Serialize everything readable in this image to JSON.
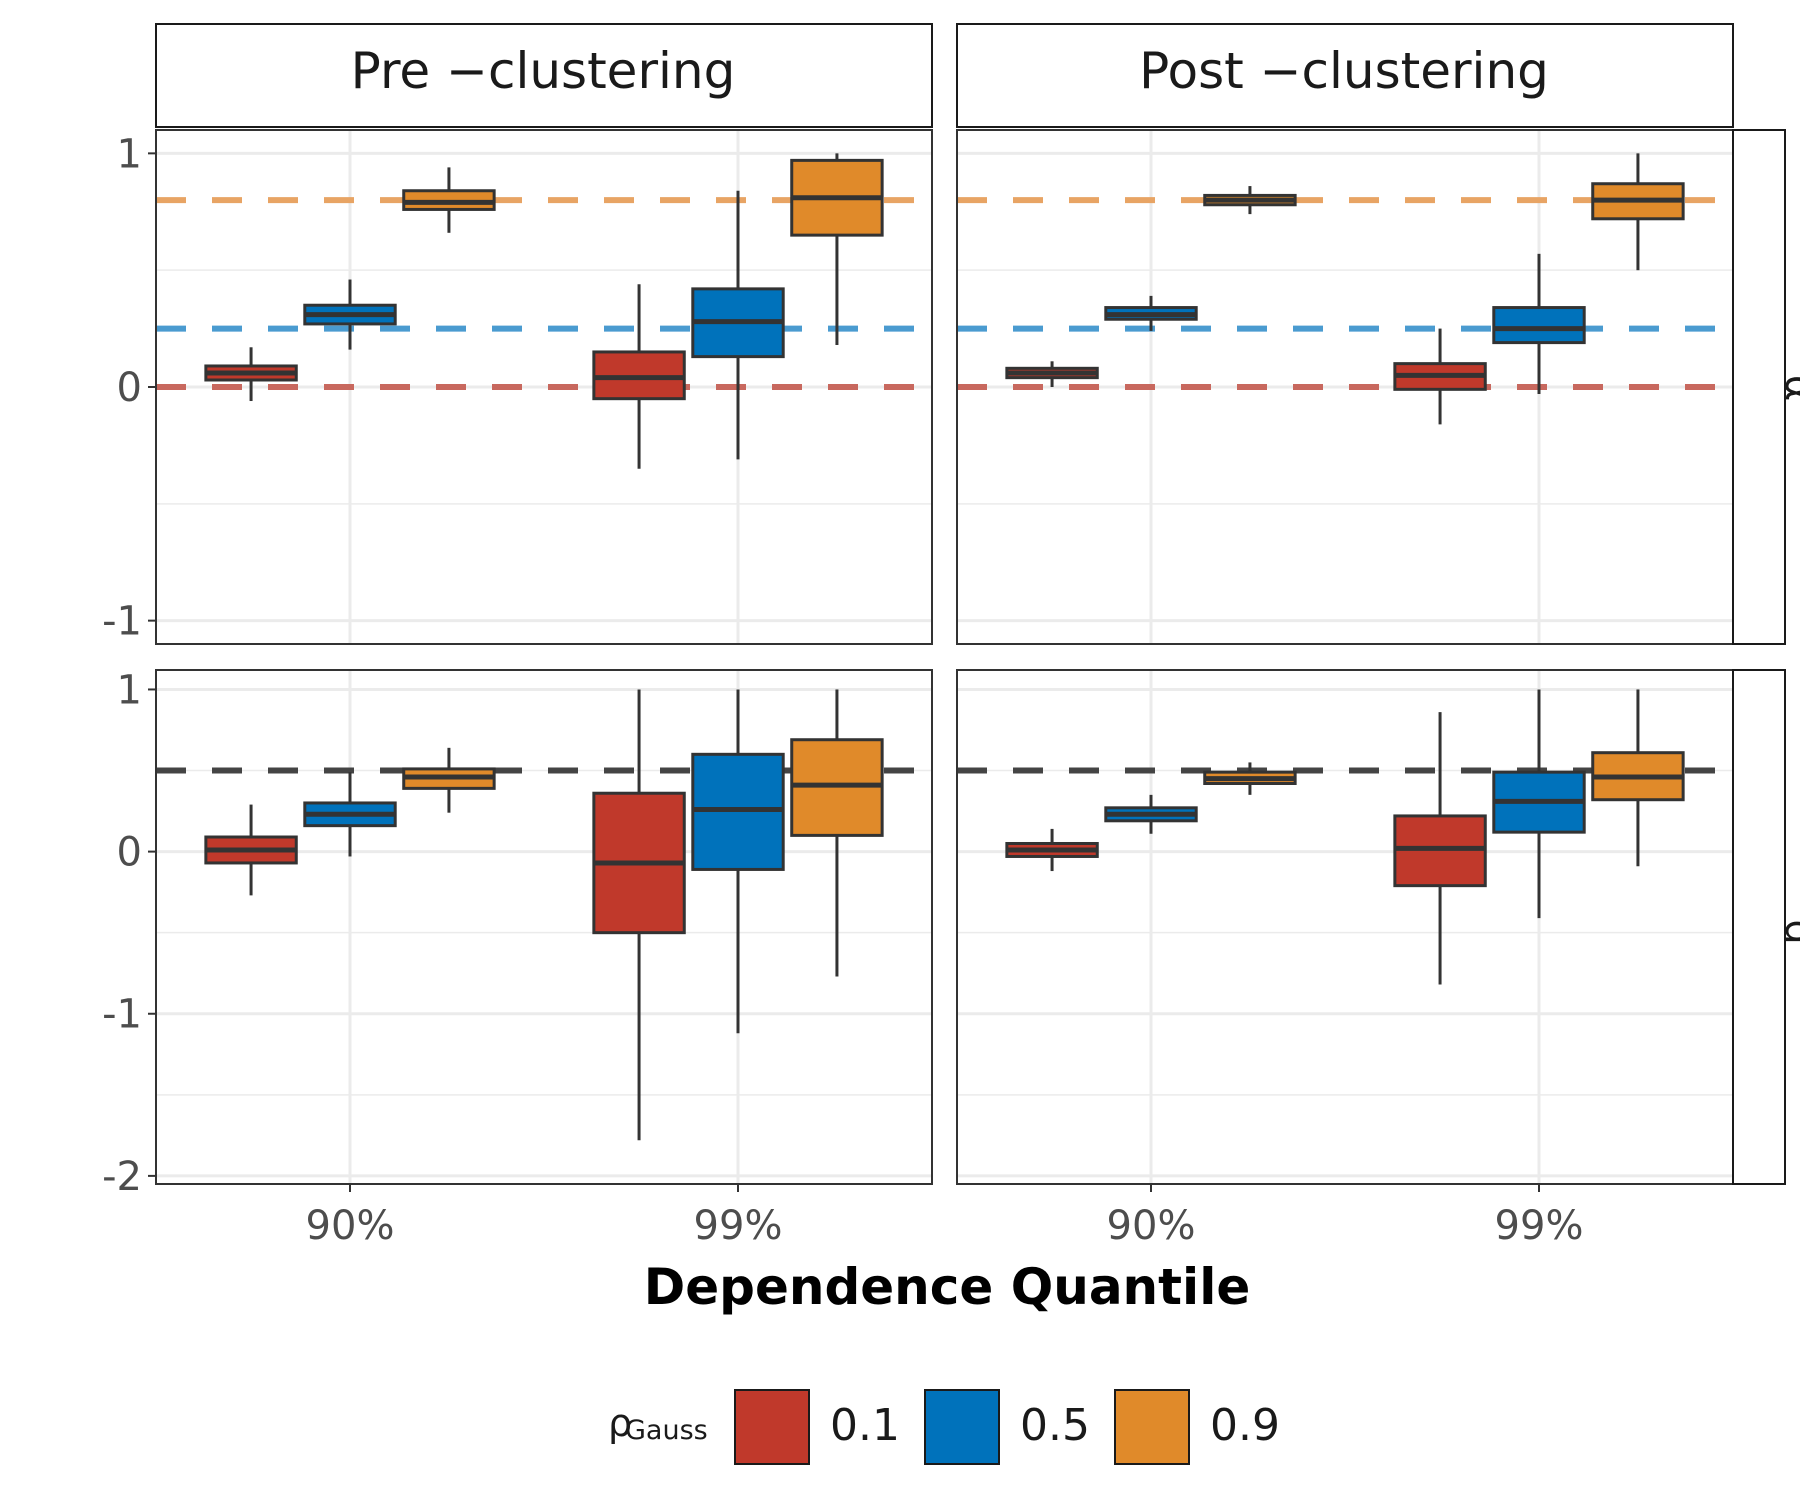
{
  "chart_data": {
    "type": "boxplot",
    "xlabel": "Dependence Quantile",
    "x_categories": [
      "90%",
      "99%"
    ],
    "facet_columns": [
      "Pre −clustering",
      "Post −clustering"
    ],
    "facet_rows": [
      {
        "label": "α",
        "ylim": [
          -1.1,
          1.1
        ],
        "ticks": [
          1,
          0,
          -1
        ],
        "tick_labels": [
          "1",
          "0",
          "-1"
        ],
        "minor_ticks": [
          0.5,
          -0.5
        ]
      },
      {
        "label": "d",
        "ylim": [
          -2.05,
          1.12
        ],
        "ticks": [
          1,
          0,
          -1,
          -2
        ],
        "tick_labels": [
          "1",
          "0",
          "-1",
          "-2"
        ],
        "minor_ticks": [
          0.5,
          -0.5,
          -1.5
        ]
      }
    ],
    "legend": {
      "title_main": "ρ",
      "title_sub": "Gauss",
      "placement": "bottom",
      "items": [
        {
          "label": "0.1",
          "color": "#C0392B"
        },
        {
          "label": "0.5",
          "color": "#0072BB"
        },
        {
          "label": "0.9",
          "color": "#E08A2A"
        }
      ]
    },
    "reference_lines": {
      "alpha": [
        {
          "value": 0.8,
          "color": "#E8A464"
        },
        {
          "value": 0.25,
          "color": "#4A9BD0"
        },
        {
          "value": 0.0,
          "color": "#C8685E"
        }
      ],
      "d": [
        {
          "value": 0.5,
          "color": "#444444"
        }
      ]
    },
    "panels": [
      {
        "column": "Pre −clustering",
        "row": "α",
        "boxes": [
          {
            "quantile": "90%",
            "group": "0.1",
            "min": -0.06,
            "q1": 0.03,
            "median": 0.06,
            "q3": 0.09,
            "max": 0.17
          },
          {
            "quantile": "90%",
            "group": "0.5",
            "min": 0.16,
            "q1": 0.27,
            "median": 0.31,
            "q3": 0.35,
            "max": 0.46
          },
          {
            "quantile": "90%",
            "group": "0.9",
            "min": 0.66,
            "q1": 0.76,
            "median": 0.79,
            "q3": 0.84,
            "max": 0.94
          },
          {
            "quantile": "99%",
            "group": "0.1",
            "min": -0.35,
            "q1": -0.05,
            "median": 0.04,
            "q3": 0.15,
            "max": 0.44
          },
          {
            "quantile": "99%",
            "group": "0.5",
            "min": -0.31,
            "q1": 0.13,
            "median": 0.28,
            "q3": 0.42,
            "max": 0.84
          },
          {
            "quantile": "99%",
            "group": "0.9",
            "min": 0.18,
            "q1": 0.65,
            "median": 0.81,
            "q3": 0.97,
            "max": 1.0
          }
        ]
      },
      {
        "column": "Post −clustering",
        "row": "α",
        "boxes": [
          {
            "quantile": "90%",
            "group": "0.1",
            "min": 0.0,
            "q1": 0.04,
            "median": 0.06,
            "q3": 0.08,
            "max": 0.11
          },
          {
            "quantile": "90%",
            "group": "0.5",
            "min": 0.24,
            "q1": 0.29,
            "median": 0.31,
            "q3": 0.34,
            "max": 0.39
          },
          {
            "quantile": "90%",
            "group": "0.9",
            "min": 0.74,
            "q1": 0.78,
            "median": 0.8,
            "q3": 0.82,
            "max": 0.86
          },
          {
            "quantile": "99%",
            "group": "0.1",
            "min": -0.16,
            "q1": -0.01,
            "median": 0.05,
            "q3": 0.1,
            "max": 0.25
          },
          {
            "quantile": "99%",
            "group": "0.5",
            "min": -0.03,
            "q1": 0.19,
            "median": 0.25,
            "q3": 0.34,
            "max": 0.57
          },
          {
            "quantile": "99%",
            "group": "0.9",
            "min": 0.5,
            "q1": 0.72,
            "median": 0.8,
            "q3": 0.87,
            "max": 1.0
          }
        ]
      },
      {
        "column": "Pre −clustering",
        "row": "d",
        "boxes": [
          {
            "quantile": "90%",
            "group": "0.1",
            "min": -0.27,
            "q1": -0.07,
            "median": 0.01,
            "q3": 0.09,
            "max": 0.29
          },
          {
            "quantile": "90%",
            "group": "0.5",
            "min": -0.03,
            "q1": 0.16,
            "median": 0.23,
            "q3": 0.3,
            "max": 0.49
          },
          {
            "quantile": "90%",
            "group": "0.9",
            "min": 0.24,
            "q1": 0.39,
            "median": 0.46,
            "q3": 0.51,
            "max": 0.64
          },
          {
            "quantile": "99%",
            "group": "0.1",
            "min": -1.78,
            "q1": -0.5,
            "median": -0.07,
            "q3": 0.36,
            "max": 1.0
          },
          {
            "quantile": "99%",
            "group": "0.5",
            "min": -1.12,
            "q1": -0.11,
            "median": 0.26,
            "q3": 0.6,
            "max": 1.0
          },
          {
            "quantile": "99%",
            "group": "0.9",
            "min": -0.77,
            "q1": 0.1,
            "median": 0.41,
            "q3": 0.69,
            "max": 1.0
          }
        ]
      },
      {
        "column": "Post −clustering",
        "row": "d",
        "boxes": [
          {
            "quantile": "90%",
            "group": "0.1",
            "min": -0.12,
            "q1": -0.03,
            "median": 0.01,
            "q3": 0.05,
            "max": 0.14
          },
          {
            "quantile": "90%",
            "group": "0.5",
            "min": 0.11,
            "q1": 0.19,
            "median": 0.23,
            "q3": 0.27,
            "max": 0.35
          },
          {
            "quantile": "90%",
            "group": "0.9",
            "min": 0.35,
            "q1": 0.42,
            "median": 0.45,
            "q3": 0.49,
            "max": 0.55
          },
          {
            "quantile": "99%",
            "group": "0.1",
            "min": -0.82,
            "q1": -0.21,
            "median": 0.02,
            "q3": 0.22,
            "max": 0.86
          },
          {
            "quantile": "99%",
            "group": "0.5",
            "min": -0.41,
            "q1": 0.12,
            "median": 0.31,
            "q3": 0.49,
            "max": 1.0
          },
          {
            "quantile": "99%",
            "group": "0.9",
            "min": -0.09,
            "q1": 0.32,
            "median": 0.46,
            "q3": 0.61,
            "max": 1.0
          }
        ]
      }
    ]
  }
}
